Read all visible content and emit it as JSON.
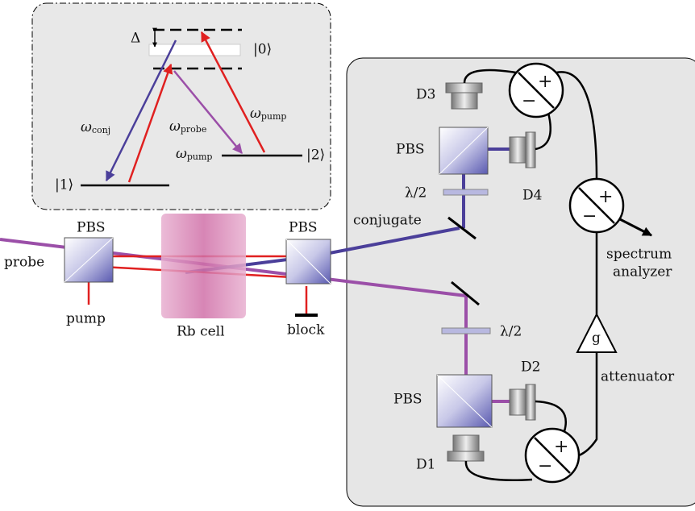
{
  "energy_diagram": {
    "delta": "Δ",
    "level_0": "|0⟩",
    "level_1": "|1⟩",
    "level_2": "|2⟩",
    "transitions": [
      {
        "symbol": "ω",
        "sub": "conj"
      },
      {
        "symbol": "ω",
        "sub": "probe"
      },
      {
        "symbol": "ω",
        "sub": "pump"
      },
      {
        "symbol": "ω",
        "sub": "pump"
      }
    ]
  },
  "setup": {
    "pbs": [
      "PBS",
      "PBS",
      "PBS",
      "PBS"
    ],
    "detectors": [
      "D1",
      "D2",
      "D3",
      "D4"
    ],
    "waveplates": [
      "λ/2",
      "λ/2"
    ],
    "probe": "probe",
    "pump": "pump",
    "cell": "Rb cell",
    "block": "block",
    "conjugate": "conjugate",
    "analyzer": [
      "spectrum",
      "analyzer"
    ],
    "gain": "g",
    "attenuator": "attenuator",
    "subtractors": [
      {
        "plus": "+",
        "minus": "−"
      },
      {
        "plus": "+",
        "minus": "−"
      },
      {
        "plus": "+",
        "minus": "−"
      }
    ]
  }
}
